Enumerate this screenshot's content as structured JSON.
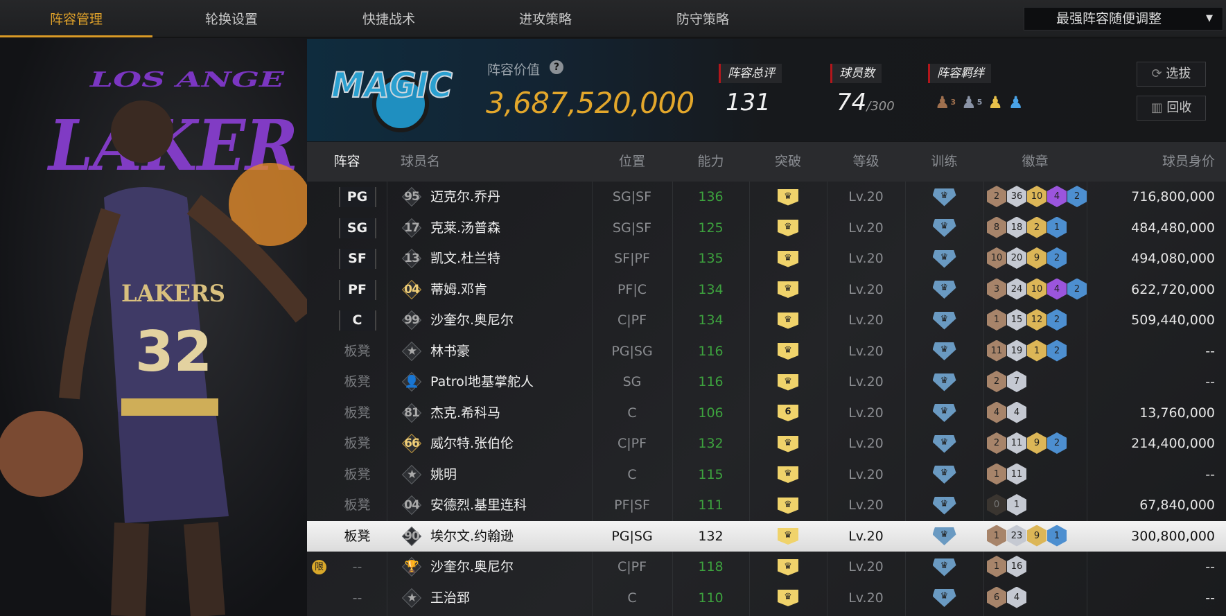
{
  "nav": {
    "tabs": [
      "阵容管理",
      "轮换设置",
      "快捷战术",
      "进攻策略",
      "防守策略"
    ],
    "active": 0,
    "dropdown": "最强阵容随便调整"
  },
  "left_panel": {
    "logo_text": "LOS ANGELES LAKERS",
    "jersey_text": "LAKERS",
    "jersey_number": "32"
  },
  "header": {
    "team_logo_text": "MAGIC",
    "value_label": "阵容价值",
    "value": "3,687,520,000",
    "rating_label": "阵容总评",
    "rating": "131",
    "players_label": "球员数",
    "players": "74",
    "players_max": "/300",
    "bonds_label": "阵容羁绊",
    "bonds": [
      {
        "icon": "bond-bronze-icon",
        "color": "#a0704e",
        "n": "3"
      },
      {
        "icon": "bond-silver-icon",
        "color": "#8a93a6",
        "n": "5"
      },
      {
        "icon": "bond-gold-icon",
        "color": "#e8c04a"
      },
      {
        "icon": "bond-blue-icon",
        "color": "#4aa3e8"
      }
    ],
    "select_button": "选拔",
    "recycle_button": "回收"
  },
  "table": {
    "headers": [
      "阵容",
      "球员名",
      "位置",
      "能力",
      "突破",
      "等级",
      "训练",
      "徽章",
      "球员身价"
    ],
    "rows": [
      {
        "slot": "PG",
        "starter": true,
        "icon": "95",
        "name": "迈克尔.乔丹",
        "pos": "SG|SF",
        "ovr": "136",
        "level": "Lv.20",
        "badges": [
          [
            1,
            "2"
          ],
          [
            2,
            "36"
          ],
          [
            3,
            "10"
          ],
          [
            4,
            "4"
          ],
          [
            5,
            "2"
          ]
        ],
        "value": "716,800,000"
      },
      {
        "slot": "SG",
        "starter": true,
        "icon": "17",
        "name": "克莱.汤普森",
        "pos": "SG|SF",
        "ovr": "125",
        "level": "Lv.20",
        "badges": [
          [
            1,
            "8"
          ],
          [
            2,
            "18"
          ],
          [
            3,
            "2"
          ],
          [
            5,
            "1"
          ]
        ],
        "value": "484,480,000"
      },
      {
        "slot": "SF",
        "starter": true,
        "icon": "13",
        "name": "凯文.杜兰特",
        "pos": "SF|PF",
        "ovr": "135",
        "level": "Lv.20",
        "badges": [
          [
            1,
            "10"
          ],
          [
            2,
            "20"
          ],
          [
            3,
            "9"
          ],
          [
            5,
            "2"
          ]
        ],
        "value": "494,080,000"
      },
      {
        "slot": "PF",
        "starter": true,
        "icon": "04",
        "gold": true,
        "name": "蒂姆.邓肯",
        "pos": "PF|C",
        "ovr": "134",
        "level": "Lv.20",
        "badges": [
          [
            1,
            "3"
          ],
          [
            2,
            "24"
          ],
          [
            3,
            "10"
          ],
          [
            4,
            "4"
          ],
          [
            5,
            "2"
          ]
        ],
        "value": "622,720,000"
      },
      {
        "slot": "C",
        "starter": true,
        "icon": "99",
        "name": "沙奎尔.奥尼尔",
        "pos": "C|PF",
        "ovr": "134",
        "level": "Lv.20",
        "badges": [
          [
            1,
            "1"
          ],
          [
            2,
            "15"
          ],
          [
            3,
            "12"
          ],
          [
            5,
            "2"
          ]
        ],
        "value": "509,440,000"
      },
      {
        "slot": "板凳",
        "icon": "★",
        "name": "林书豪",
        "pos": "PG|SG",
        "ovr": "116",
        "level": "Lv.20",
        "badges": [
          [
            1,
            "11"
          ],
          [
            2,
            "19"
          ],
          [
            3,
            "1"
          ],
          [
            5,
            "2"
          ]
        ],
        "value": "--"
      },
      {
        "slot": "板凳",
        "icon": "👤",
        "name": "Patrol地基掌舵人",
        "pos": "SG",
        "ovr": "116",
        "level": "Lv.20",
        "badges": [
          [
            1,
            "2"
          ],
          [
            2,
            "7"
          ]
        ],
        "value": "--"
      },
      {
        "slot": "板凳",
        "icon": "81",
        "name": "杰克.希科马",
        "pos": "C",
        "ovr": "106",
        "level": "Lv.20",
        "breakthrough": "6",
        "badges": [
          [
            1,
            "4"
          ],
          [
            2,
            "4"
          ]
        ],
        "value": "13,760,000"
      },
      {
        "slot": "板凳",
        "icon": "66",
        "gold": true,
        "name": "威尔特.张伯伦",
        "pos": "C|PF",
        "ovr": "132",
        "level": "Lv.20",
        "badges": [
          [
            1,
            "2"
          ],
          [
            2,
            "11"
          ],
          [
            3,
            "9"
          ],
          [
            5,
            "2"
          ]
        ],
        "value": "214,400,000"
      },
      {
        "slot": "板凳",
        "icon": "★",
        "name": "姚明",
        "pos": "C",
        "ovr": "115",
        "level": "Lv.20",
        "badges": [
          [
            1,
            "1"
          ],
          [
            2,
            "11"
          ]
        ],
        "value": "--"
      },
      {
        "slot": "板凳",
        "icon": "04",
        "name": "安德烈.基里连科",
        "pos": "PF|SF",
        "ovr": "111",
        "level": "Lv.20",
        "badges": [
          [
            0,
            "0"
          ],
          [
            2,
            "1"
          ]
        ],
        "value": "67,840,000"
      },
      {
        "slot": "板凳",
        "icon": "90",
        "selected": true,
        "name": "埃尔文.约翰逊",
        "pos": "PG|SG",
        "ovr": "132",
        "level": "Lv.20",
        "badges": [
          [
            1,
            "1"
          ],
          [
            2,
            "23"
          ],
          [
            3,
            "9"
          ],
          [
            5,
            "1"
          ]
        ],
        "value": "300,800,000"
      },
      {
        "slot": "--",
        "limited": "限",
        "icon": "🏆",
        "name": "沙奎尔.奥尼尔",
        "pos": "C|PF",
        "ovr": "118",
        "level": "Lv.20",
        "badges": [
          [
            1,
            "1"
          ],
          [
            2,
            "16"
          ]
        ],
        "value": "--"
      },
      {
        "slot": "--",
        "icon": "★",
        "name": "王治郅",
        "pos": "C",
        "ovr": "110",
        "level": "Lv.20",
        "badges": [
          [
            1,
            "6"
          ],
          [
            2,
            "4"
          ]
        ],
        "value": "--"
      }
    ]
  },
  "colors": {
    "accent": "#e0a22a",
    "rating_green": "#3da33e",
    "breakthrough": "#f0d36b",
    "training": "#6a9ac2"
  }
}
